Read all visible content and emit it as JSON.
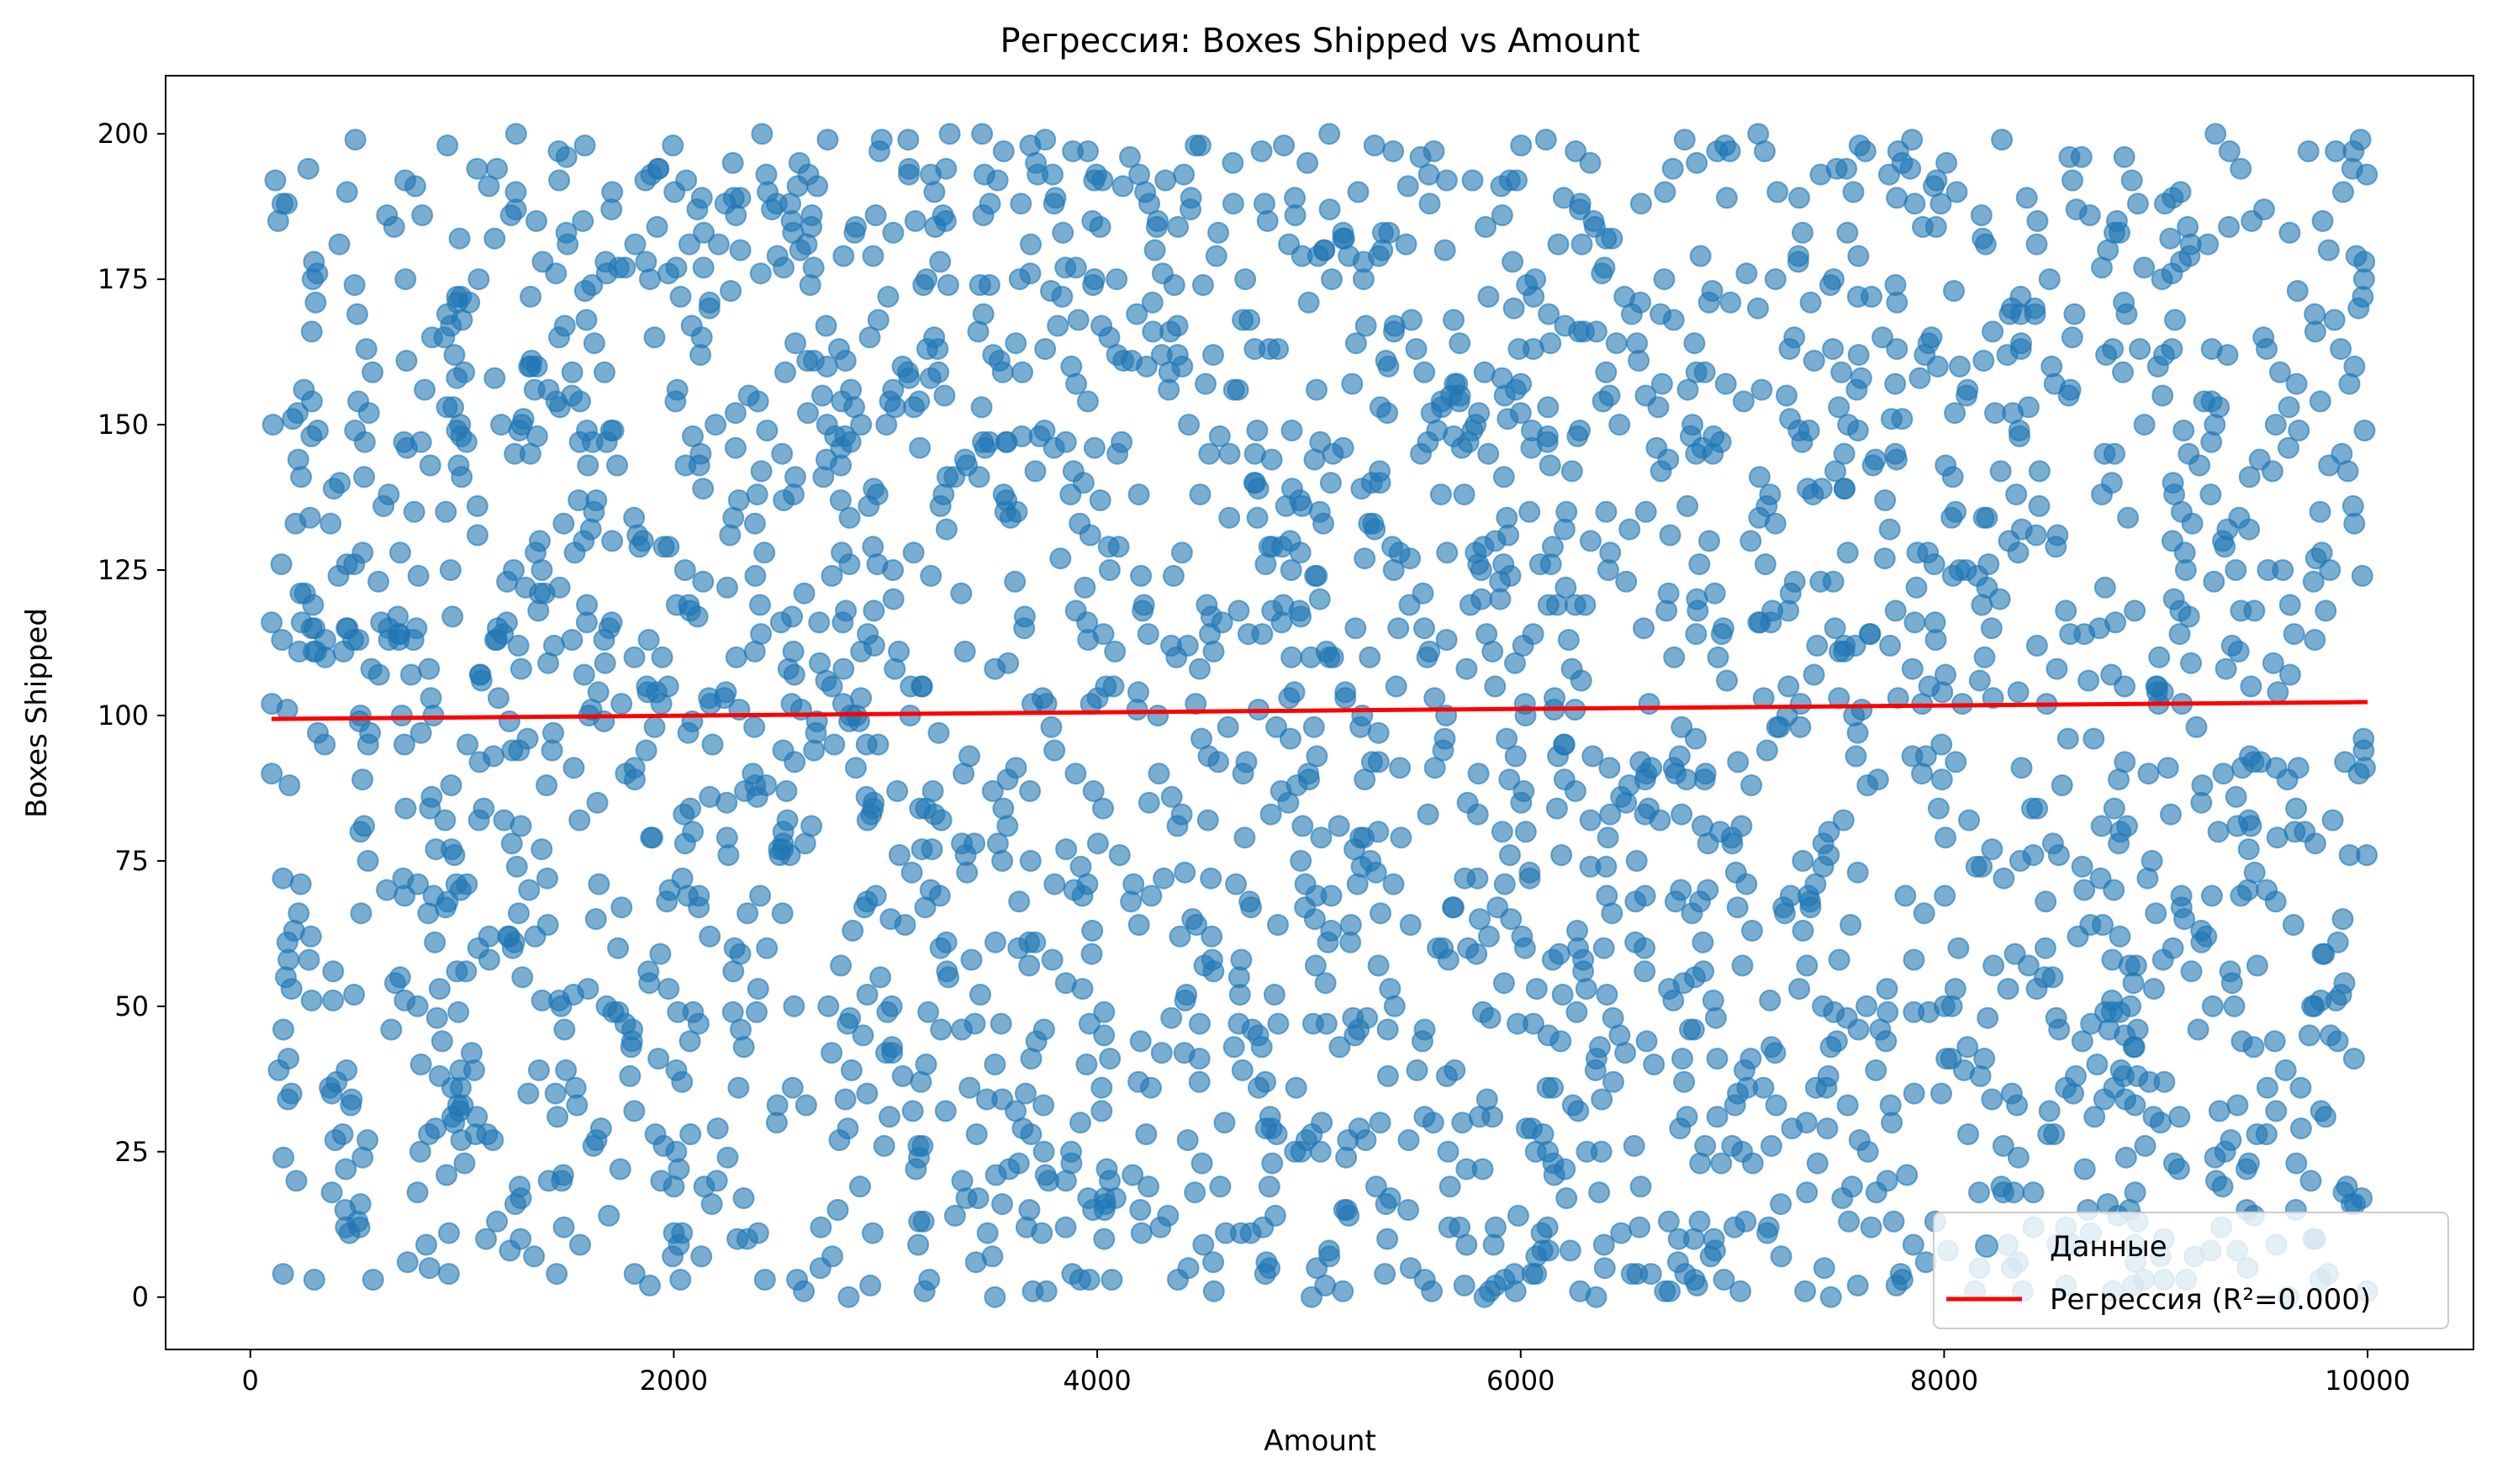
{
  "chart_data": {
    "type": "scatter",
    "title": "Регрессия: Boxes Shipped vs Amount",
    "xlabel": "Amount",
    "ylabel": "Boxes Shipped",
    "xlim": [
      -400,
      10500
    ],
    "ylim": [
      -9,
      210
    ],
    "x_ticks": [
      0,
      2000,
      4000,
      6000,
      8000,
      10000
    ],
    "y_ticks": [
      0,
      25,
      50,
      75,
      100,
      125,
      150,
      175,
      200
    ],
    "grid": false,
    "legend_position": "lower-right",
    "series": [
      {
        "name": "Данные",
        "kind": "scatter",
        "color": "#1f77b4",
        "alpha": 0.6,
        "count": 2500,
        "x_range": [
          100,
          10000
        ],
        "y_range": [
          0,
          200
        ],
        "distribution": "uniform"
      },
      {
        "name": "Регрессия (R²=0.000)",
        "kind": "line",
        "color": "#ff0000",
        "x": [
          100,
          10000
        ],
        "y": [
          99.4,
          102.3
        ]
      }
    ]
  }
}
